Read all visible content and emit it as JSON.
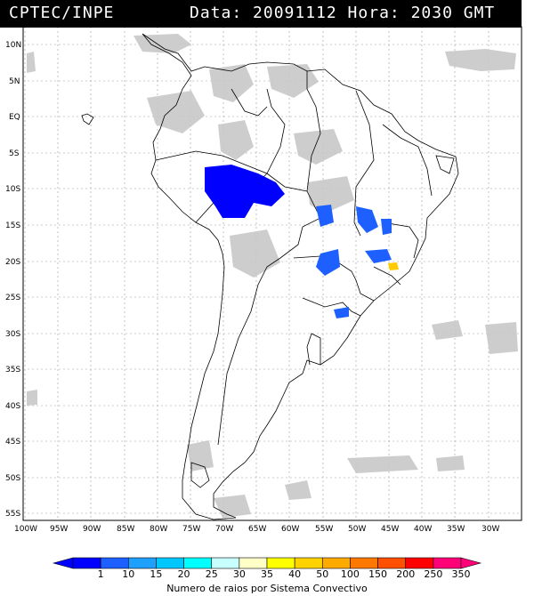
{
  "header": {
    "org": "CPTEC/INPE",
    "datetime": "Data: 20091112 Hora: 2030 GMT"
  },
  "axes": {
    "lat_labels": [
      "10N",
      "5N",
      "EQ",
      "5S",
      "10S",
      "15S",
      "20S",
      "25S",
      "30S",
      "35S",
      "40S",
      "45S",
      "50S",
      "55S"
    ],
    "lon_labels": [
      "100W",
      "95W",
      "90W",
      "85W",
      "80W",
      "75W",
      "70W",
      "65W",
      "60W",
      "55W",
      "50W",
      "45W",
      "40W",
      "35W",
      "30W"
    ]
  },
  "legend": {
    "title": "Numero de raios por Sistema Convectivo",
    "values": [
      "1",
      "10",
      "15",
      "20",
      "25",
      "30",
      "35",
      "40",
      "50",
      "100",
      "150",
      "200",
      "250",
      "350"
    ],
    "colors": [
      "#0000ff",
      "#1e60ff",
      "#1ea0ff",
      "#00c8ff",
      "#00ffff",
      "#c8ffff",
      "#ffffc8",
      "#ffff00",
      "#ffd200",
      "#ffaa00",
      "#ff7800",
      "#ff5000",
      "#ff0000",
      "#ff0078"
    ]
  },
  "colors": {
    "cloud": "#c8c8c8",
    "cluster_blue": "#0000ff",
    "cluster_mid_blue": "#1e60ff",
    "cluster_yellow": "#ffcc00"
  }
}
